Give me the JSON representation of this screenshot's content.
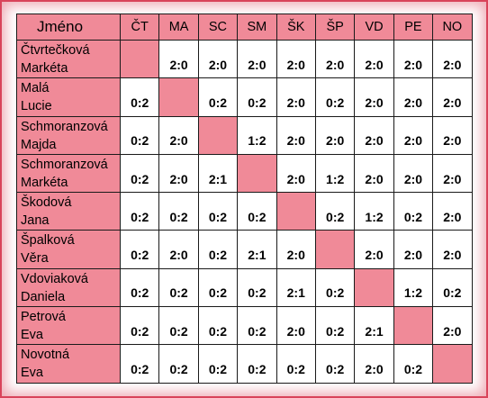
{
  "table": {
    "header_name": "Jméno",
    "columns": [
      "ČT",
      "MA",
      "SC",
      "SM",
      "ŠK",
      "ŠP",
      "VD",
      "PE",
      "NO"
    ],
    "rows": [
      {
        "first": "Čtvrtečková",
        "second": "Markéta",
        "scores": [
          "",
          "2:0",
          "2:0",
          "2:0",
          "2:0",
          "2:0",
          "2:0",
          "2:0",
          "2:0"
        ]
      },
      {
        "first": "Malá",
        "second": "Lucie",
        "scores": [
          "0:2",
          "",
          "0:2",
          "0:2",
          "2:0",
          "0:2",
          "2:0",
          "2:0",
          "2:0"
        ]
      },
      {
        "first": "Schmoranzová",
        "second": "Majda",
        "scores": [
          "0:2",
          "2:0",
          "",
          "1:2",
          "2:0",
          "2:0",
          "2:0",
          "2:0",
          "2:0"
        ]
      },
      {
        "first": "Schmoranzová",
        "second": "Markéta",
        "scores": [
          "0:2",
          "2:0",
          "2:1",
          "",
          "2:0",
          "1:2",
          "2:0",
          "2:0",
          "2:0"
        ]
      },
      {
        "first": "Škodová",
        "second": "Jana",
        "scores": [
          "0:2",
          "0:2",
          "0:2",
          "0:2",
          "",
          "0:2",
          "1:2",
          "0:2",
          "2:0"
        ]
      },
      {
        "first": "Špalková",
        "second": "Věra",
        "scores": [
          "0:2",
          "2:0",
          "0:2",
          "2:1",
          "2:0",
          "",
          "2:0",
          "2:0",
          "2:0"
        ]
      },
      {
        "first": "Vdoviaková",
        "second": "Daniela",
        "scores": [
          "0:2",
          "0:2",
          "0:2",
          "0:2",
          "2:1",
          "0:2",
          "",
          "1:2",
          "0:2"
        ]
      },
      {
        "first": "Petrová",
        "second": "Eva",
        "scores": [
          "0:2",
          "0:2",
          "0:2",
          "0:2",
          "2:0",
          "0:2",
          "2:1",
          "",
          "2:0"
        ]
      },
      {
        "first": "Novotná",
        "second": "Eva",
        "scores": [
          "0:2",
          "0:2",
          "0:2",
          "0:2",
          "0:2",
          "0:2",
          "2:0",
          "0:2",
          ""
        ]
      }
    ]
  },
  "colors": {
    "highlight": "#f08a98",
    "frame": "#d9445a",
    "grid": "#1a1a1a"
  }
}
